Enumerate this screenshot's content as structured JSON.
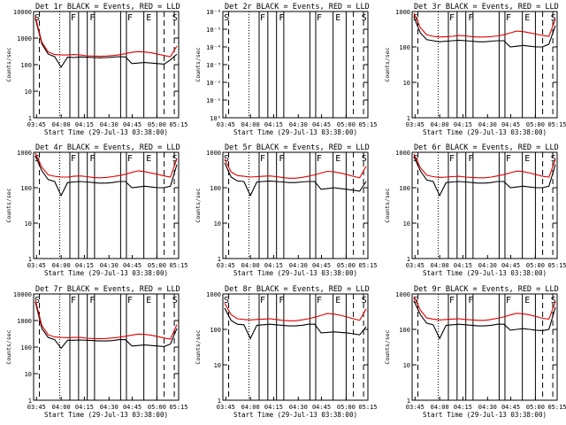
{
  "chart_data": [
    {
      "type": "line",
      "title": "Det 1r BLACK = Events, RED = LLD",
      "xlabel": "Start Time (29-Jul-13 03:38:00)",
      "ylabel": "Counts/sec",
      "scale": "log",
      "ylim": [
        1,
        10000
      ],
      "ytick_labels": [
        "10000",
        "1000",
        "100",
        "10",
        "1"
      ],
      "x_tick_labels": [
        "03:45",
        "04:00",
        "04:15",
        "04:30",
        "04:45",
        "05:00",
        "05:15"
      ],
      "markers": [
        "S",
        "F",
        "F",
        "F",
        "E",
        "S"
      ],
      "series": [
        {
          "color": "#000000",
          "values": [
            5500,
            600,
            250,
            200,
            80,
            190,
            185,
            195,
            190,
            185,
            180,
            185,
            190,
            200,
            195,
            110,
            115,
            120,
            115,
            110,
            105,
            150,
            250
          ]
        },
        {
          "color": "#e00000",
          "values": [
            6500,
            700,
            300,
            240,
            230,
            230,
            240,
            230,
            215,
            210,
            205,
            210,
            220,
            235,
            260,
            290,
            310,
            300,
            280,
            250,
            220,
            200,
            500
          ]
        }
      ]
    },
    {
      "type": "line",
      "title": "Det 2r BLACK = Events, RED = LLD",
      "xlabel": "Start Time (29-Jul-13 03:38:00)",
      "ylabel": "Counts/sec",
      "scale": "log",
      "ylim": [
        1e-06,
        1.0
      ],
      "ytick_labels": [
        "10⁻⁶",
        "10⁻⁵",
        "10⁻⁴",
        "10⁻³",
        "10⁻²",
        "10⁻¹",
        "10⁰"
      ],
      "x_tick_labels": [
        "03:45",
        "04:00",
        "04:15",
        "04:30",
        "04:45",
        "05:00",
        "05:15"
      ],
      "markers": [
        "S",
        "F",
        "F",
        "F",
        "E",
        "S"
      ],
      "series": []
    },
    {
      "type": "line",
      "title": "Det 3r BLACK = Events, RED = LLD",
      "xlabel": "Start Time (29-Jul-13 03:38:00)",
      "ylabel": "Counts/sec",
      "scale": "log",
      "ylim": [
        1,
        1000
      ],
      "ytick_labels": [
        "1000",
        "100",
        "10",
        "1"
      ],
      "x_tick_labels": [
        "03:45",
        "04:00",
        "04:15",
        "04:30",
        "04:45",
        "05:00",
        "05:15"
      ],
      "markers": [
        "S",
        "F",
        "F",
        "F",
        "E",
        "S"
      ],
      "series": [
        {
          "color": "#000000",
          "values": [
            700,
            250,
            160,
            150,
            140,
            145,
            150,
            155,
            150,
            145,
            140,
            140,
            145,
            150,
            150,
            100,
            105,
            110,
            105,
            100,
            100,
            120,
            400
          ]
        },
        {
          "color": "#e00000",
          "values": [
            900,
            350,
            220,
            200,
            190,
            195,
            200,
            210,
            205,
            195,
            190,
            190,
            195,
            205,
            220,
            250,
            280,
            270,
            250,
            230,
            210,
            200,
            600
          ]
        }
      ]
    },
    {
      "type": "line",
      "title": "Det 4r BLACK = Events, RED = LLD",
      "xlabel": "Start Time (29-Jul-13 03:38:00)",
      "ylabel": "Counts/sec",
      "scale": "log",
      "ylim": [
        1,
        1000
      ],
      "ytick_labels": [
        "1000",
        "100",
        "10",
        "1"
      ],
      "x_tick_labels": [
        "03:45",
        "04:00",
        "04:15",
        "04:30",
        "04:45",
        "05:00",
        "05:15"
      ],
      "markers": [
        "S",
        "F",
        "F",
        "F",
        "E",
        "S"
      ],
      "series": [
        {
          "color": "#000000",
          "values": [
            800,
            300,
            170,
            150,
            60,
            140,
            145,
            150,
            145,
            140,
            135,
            135,
            140,
            150,
            150,
            100,
            105,
            110,
            105,
            100,
            100,
            110,
            450
          ]
        },
        {
          "color": "#e00000",
          "values": [
            950,
            380,
            230,
            210,
            200,
            200,
            210,
            215,
            205,
            195,
            190,
            195,
            205,
            220,
            240,
            270,
            300,
            285,
            260,
            240,
            215,
            200,
            650
          ]
        }
      ]
    },
    {
      "type": "line",
      "title": "Det 5r BLACK = Events, RED = LLD",
      "xlabel": "Start Time (29-Jul-13 03:38:00)",
      "ylabel": "Counts/sec",
      "scale": "log",
      "ylim": [
        1,
        1000
      ],
      "ytick_labels": [
        "1000",
        "100",
        "10",
        "1"
      ],
      "x_tick_labels": [
        "03:45",
        "04:00",
        "04:15",
        "04:30",
        "04:45",
        "05:00",
        "05:15"
      ],
      "markers": [
        "S",
        "F",
        "F",
        "F",
        "E",
        "S"
      ],
      "series": [
        {
          "color": "#000000",
          "values": [
            500,
            200,
            155,
            150,
            60,
            145,
            150,
            155,
            150,
            145,
            140,
            140,
            145,
            150,
            150,
            90,
            95,
            100,
            95,
            90,
            85,
            80,
            150
          ]
        },
        {
          "color": "#e00000",
          "values": [
            650,
            280,
            220,
            210,
            200,
            205,
            210,
            215,
            205,
            195,
            185,
            185,
            195,
            210,
            230,
            260,
            290,
            280,
            260,
            235,
            210,
            190,
            400
          ]
        }
      ]
    },
    {
      "type": "line",
      "title": "Det 6r BLACK = Events, RED = LLD",
      "xlabel": "Start Time (29-Jul-13 03:38:00)",
      "ylabel": "Counts/sec",
      "scale": "log",
      "ylim": [
        1,
        1000
      ],
      "ytick_labels": [
        "1000",
        "100",
        "10",
        "1"
      ],
      "x_tick_labels": [
        "03:45",
        "04:00",
        "04:15",
        "04:30",
        "04:45",
        "05:00",
        "05:15"
      ],
      "markers": [
        "S",
        "F",
        "F",
        "F",
        "E",
        "S"
      ],
      "series": [
        {
          "color": "#000000",
          "values": [
            750,
            300,
            165,
            150,
            60,
            140,
            145,
            150,
            145,
            140,
            135,
            135,
            140,
            150,
            150,
            100,
            105,
            110,
            105,
            100,
            100,
            110,
            450
          ]
        },
        {
          "color": "#e00000",
          "values": [
            900,
            370,
            225,
            205,
            195,
            200,
            205,
            210,
            200,
            195,
            190,
            190,
            200,
            215,
            235,
            265,
            295,
            285,
            260,
            235,
            210,
            200,
            620
          ]
        }
      ]
    },
    {
      "type": "line",
      "title": "Det 7r BLACK = Events, RED = LLD",
      "xlabel": "Start Time (29-Jul-13 03:38:00)",
      "ylabel": "Counts/sec",
      "scale": "log",
      "ylim": [
        1,
        10000
      ],
      "ytick_labels": [
        "10000",
        "1000",
        "100",
        "10",
        "1"
      ],
      "x_tick_labels": [
        "03:45",
        "04:00",
        "04:15",
        "04:30",
        "04:45",
        "05:00",
        "05:15"
      ],
      "markers": [
        "S",
        "F",
        "F",
        "F",
        "E",
        "S"
      ],
      "series": [
        {
          "color": "#000000",
          "values": [
            5000,
            500,
            230,
            190,
            90,
            180,
            180,
            185,
            180,
            175,
            170,
            170,
            175,
            190,
            190,
            110,
            115,
            120,
            115,
            110,
            105,
            130,
            500
          ]
        },
        {
          "color": "#e00000",
          "values": [
            6000,
            650,
            290,
            240,
            230,
            225,
            230,
            230,
            215,
            210,
            205,
            210,
            220,
            235,
            255,
            285,
            310,
            300,
            280,
            250,
            220,
            200,
            700
          ]
        }
      ]
    },
    {
      "type": "line",
      "title": "Det 8r BLACK = Events, RED = LLD",
      "xlabel": "Start Time (29-Jul-13 03:38:00)",
      "ylabel": "Counts/sec",
      "scale": "log",
      "ylim": [
        1,
        1000
      ],
      "ytick_labels": [
        "1000",
        "100",
        "10",
        "1"
      ],
      "x_tick_labels": [
        "03:45",
        "04:00",
        "04:15",
        "04:30",
        "04:45",
        "05:00",
        "05:15"
      ],
      "markers": [
        "S",
        "F",
        "F",
        "F",
        "E",
        "S"
      ],
      "series": [
        {
          "color": "#000000",
          "values": [
            400,
            180,
            140,
            135,
            55,
            130,
            135,
            140,
            135,
            130,
            125,
            125,
            130,
            140,
            140,
            80,
            82,
            85,
            82,
            80,
            75,
            70,
            120
          ]
        },
        {
          "color": "#e00000",
          "values": [
            550,
            260,
            200,
            190,
            185,
            190,
            195,
            200,
            190,
            180,
            175,
            175,
            185,
            200,
            220,
            250,
            280,
            270,
            250,
            225,
            200,
            180,
            380
          ]
        }
      ]
    },
    {
      "type": "line",
      "title": "Det 9r BLACK = Events, RED = LLD",
      "xlabel": "Start Time (29-Jul-13 03:38:00)",
      "ylabel": "Counts/sec",
      "scale": "log",
      "ylim": [
        1,
        1000
      ],
      "ytick_labels": [
        "1000",
        "100",
        "10",
        "1"
      ],
      "x_tick_labels": [
        "03:45",
        "04:00",
        "04:15",
        "04:30",
        "04:45",
        "05:00",
        "05:15"
      ],
      "markers": [
        "S",
        "F",
        "F",
        "F",
        "E",
        "S"
      ],
      "series": [
        {
          "color": "#000000",
          "values": [
            650,
            260,
            150,
            135,
            55,
            130,
            135,
            140,
            135,
            130,
            125,
            125,
            130,
            140,
            140,
            95,
            100,
            105,
            100,
            95,
            92,
            100,
            420
          ]
        },
        {
          "color": "#e00000",
          "values": [
            850,
            350,
            210,
            195,
            185,
            190,
            195,
            200,
            190,
            185,
            180,
            180,
            190,
            205,
            225,
            255,
            285,
            275,
            255,
            230,
            205,
            195,
            600
          ]
        }
      ]
    }
  ]
}
